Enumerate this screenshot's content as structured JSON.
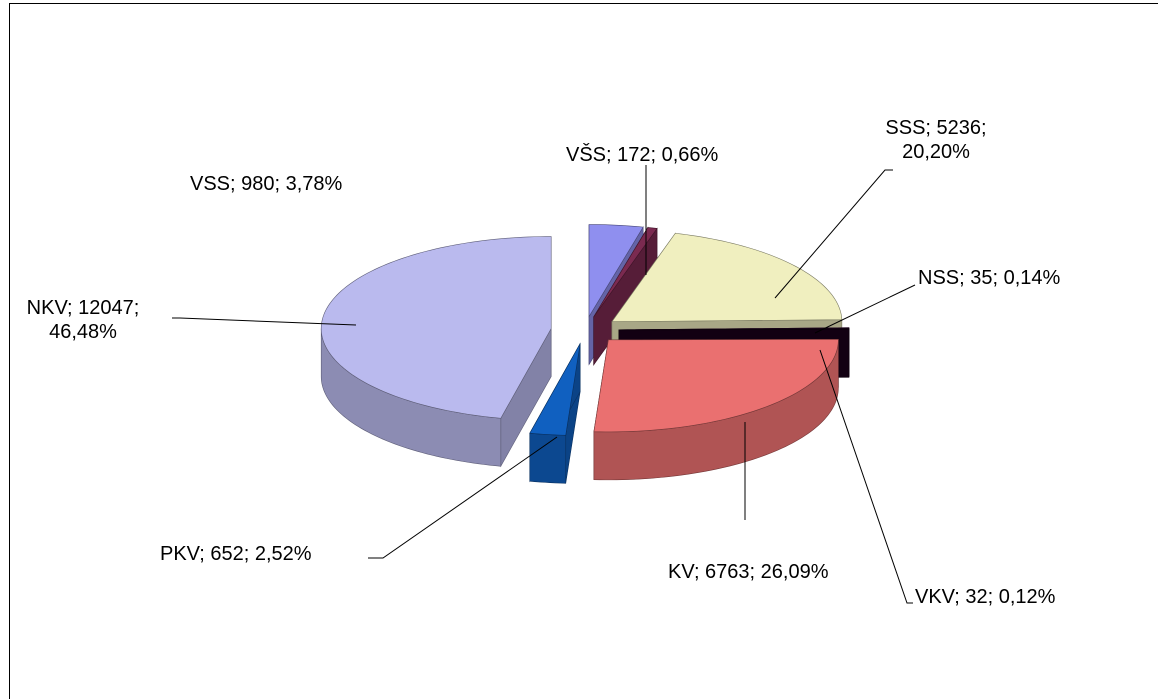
{
  "chart_data": {
    "type": "pie3d",
    "values": [
      980,
      172,
      5236,
      35,
      32,
      6763,
      652,
      12047
    ],
    "value_labels": [
      "VSS; 980; 3,78%",
      "VŠS; 172; 0,66%",
      "SSS; 5236; 20,20%",
      "NSS; 35; 0,14%",
      "VKV; 32; 0,12%",
      "KV; 6763; 26,09%",
      "PKV; 652; 2,52%",
      "NKV; 12047; 46,48%"
    ],
    "colors": [
      "#8f8fef",
      "#7b2a50",
      "#f0efbf",
      "#3a0a3a",
      "#1a001a",
      "#ea7070",
      "#1060c0",
      "#babaee"
    ]
  }
}
